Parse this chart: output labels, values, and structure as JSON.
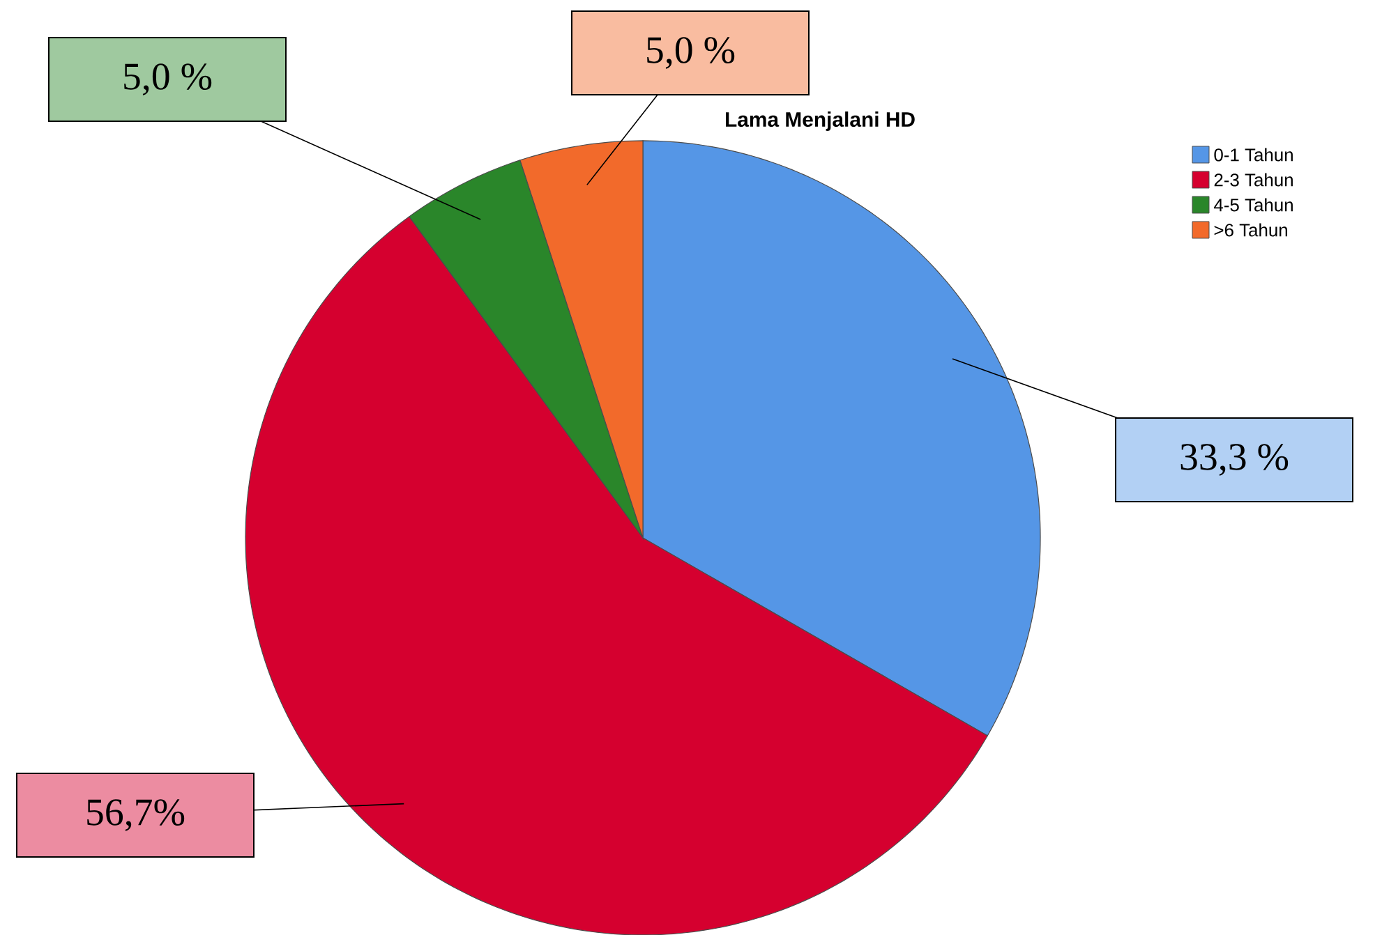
{
  "chart_data": {
    "type": "pie",
    "title": "Lama Menjalani HD",
    "categories": [
      "0-1 Tahun",
      "2-3 Tahun",
      "4-5 Tahun",
      ">6 Tahun"
    ],
    "values": [
      33.3,
      56.7,
      5.0,
      5.0
    ],
    "colors": [
      "#5596e6",
      "#d5002f",
      "#2a862a",
      "#f26a2b"
    ],
    "value_labels": [
      "33,3 %",
      "56,7%",
      "5,0 %",
      "5,0  %"
    ],
    "legend": "top right"
  }
}
